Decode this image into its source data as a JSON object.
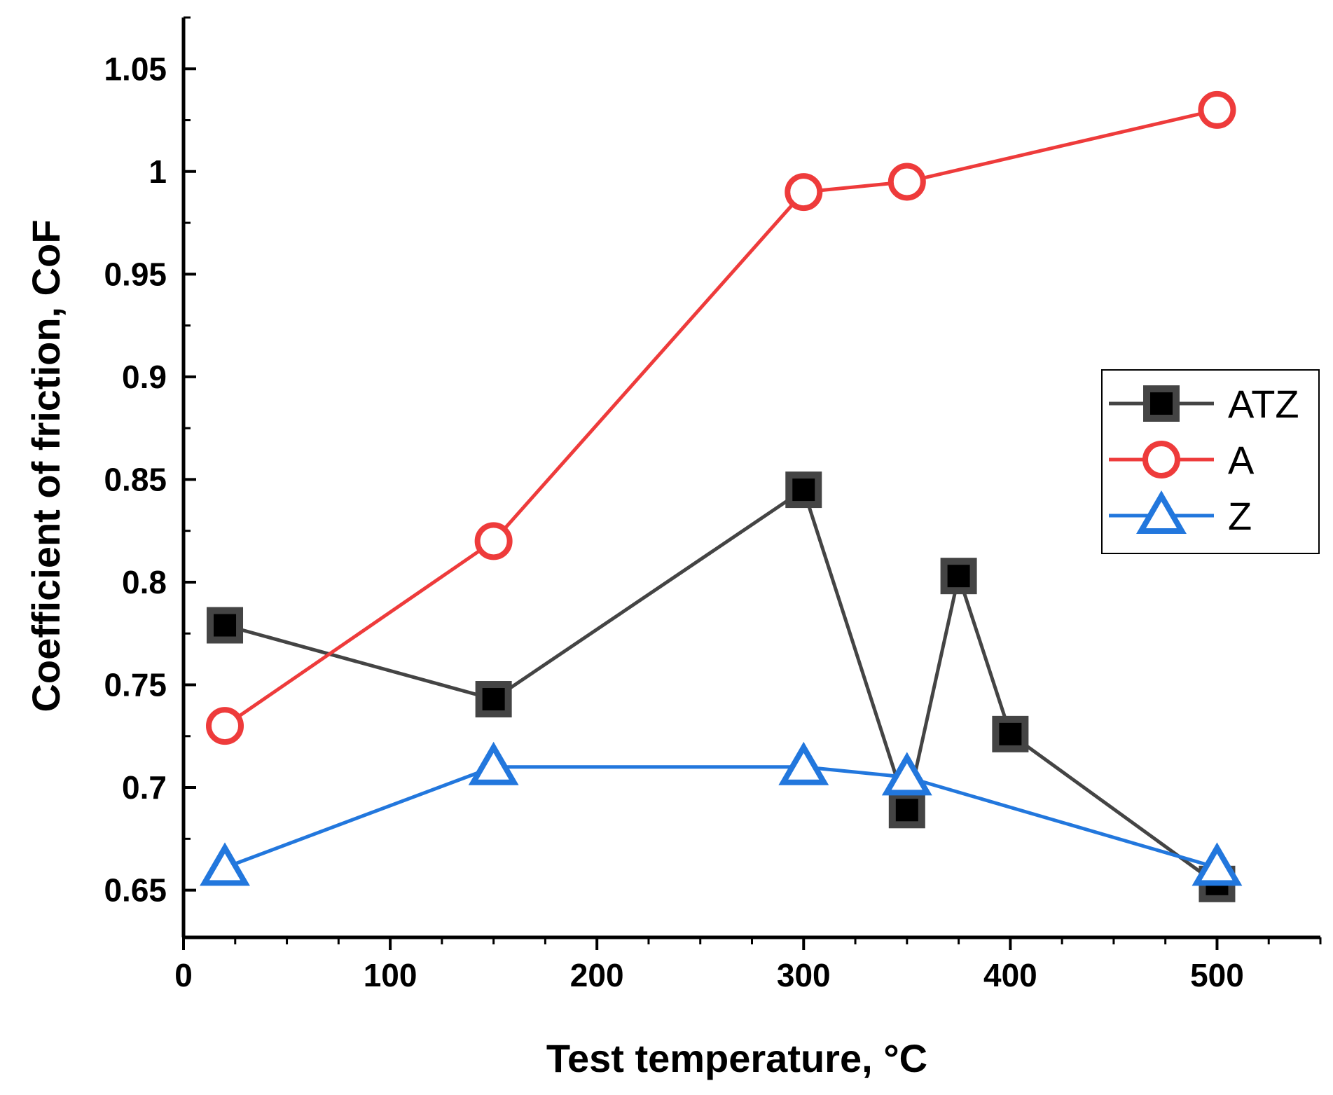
{
  "chart_data": {
    "type": "line",
    "title": "",
    "xlabel": "Test temperature, °C",
    "ylabel": "Coefficient of friction, CoF",
    "xlim": [
      0,
      550
    ],
    "ylim": [
      0.627,
      1.075
    ],
    "x_ticks": [
      0,
      100,
      200,
      300,
      400,
      500
    ],
    "x_tick_labels": [
      "0",
      "100",
      "200",
      "300",
      "400",
      "500"
    ],
    "y_ticks": [
      0.65,
      0.7,
      0.75,
      0.8,
      0.85,
      0.9,
      0.95,
      1.0,
      1.05
    ],
    "y_tick_labels": [
      "0.65",
      "0.7",
      "0.75",
      "0.8",
      "0.85",
      "0.9",
      "0.95",
      "1",
      "1.05"
    ],
    "legend_position": "center-right",
    "series": [
      {
        "name": "ATZ",
        "marker": "square",
        "color": "#444444",
        "x": [
          20,
          150,
          300,
          350,
          375,
          400,
          500
        ],
        "y": [
          0.779,
          0.743,
          0.845,
          0.689,
          0.803,
          0.726,
          0.653
        ]
      },
      {
        "name": "A",
        "marker": "circle",
        "color": "#ee3b3b",
        "x": [
          20,
          150,
          300,
          350,
          500
        ],
        "y": [
          0.73,
          0.82,
          0.99,
          0.995,
          1.03
        ]
      },
      {
        "name": "Z",
        "marker": "triangle",
        "color": "#2277dd",
        "x": [
          20,
          150,
          300,
          350,
          500
        ],
        "y": [
          0.661,
          0.71,
          0.71,
          0.705,
          0.661
        ]
      }
    ]
  }
}
